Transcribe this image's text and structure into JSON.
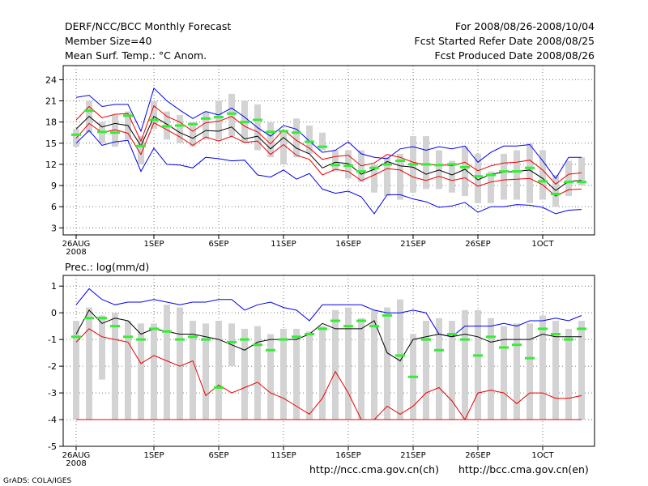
{
  "header": {
    "title": "DERF/NCC/BCC Monthly Forecast",
    "member_size": "Member Size=40",
    "variable": "Mean Surf. Temp.: °C Anom.",
    "period": "For 2008/08/26-2008/10/04",
    "started": "Fcst Started Refer Date 2008/08/25",
    "produced": "Fcst Produced Date 2008/08/26"
  },
  "footer": {
    "url_ch": "http://ncc.cma.gov.cn(ch)",
    "url_en": "http://bcc.cma.gov.cn(en)",
    "grads": "GrADS: COLA/IGES"
  },
  "colors": {
    "max": "#0000ee",
    "min": "#0000ee",
    "spread": "#ee0000",
    "mean": "#000000",
    "obs": "#33ee33",
    "bar": "#d3d3d3"
  },
  "chart_data": [
    {
      "type": "line",
      "title": "Mean Surf. Temp.: °C Anom.",
      "xlabel": "",
      "ylabel": "",
      "ylim": [
        2,
        26
      ],
      "yticks": [
        3,
        6,
        9,
        12,
        15,
        18,
        21,
        24
      ],
      "xticks": [
        "26AUG 2008",
        "1SEP",
        "6SEP",
        "11SEP",
        "16SEP",
        "21SEP",
        "26SEP",
        "1OCT"
      ],
      "days": 40,
      "bar_low": [
        14.5,
        16.5,
        15.0,
        14.5,
        15.5,
        12.0,
        17.0,
        15.5,
        15.0,
        14.5,
        15.5,
        15.5,
        16.0,
        15.0,
        14.0,
        13.0,
        12.0,
        13.0,
        13.5,
        14.0,
        11.0,
        10.0,
        9.5,
        8.0,
        7.5,
        7.0,
        8.0,
        8.5,
        8.5,
        8.0,
        7.5,
        6.5,
        6.5,
        7.0,
        7.0,
        6.5,
        7.0,
        6.0,
        7.5,
        9.0
      ],
      "bar_high": [
        17.0,
        21.0,
        18.0,
        19.0,
        19.5,
        16.0,
        21.0,
        19.5,
        19.0,
        18.0,
        19.5,
        21.0,
        22.0,
        21.0,
        20.5,
        18.0,
        16.5,
        18.5,
        17.5,
        16.5,
        14.0,
        14.0,
        14.0,
        12.0,
        13.0,
        13.5,
        16.0,
        16.0,
        14.0,
        12.5,
        14.5,
        13.5,
        11.0,
        13.5,
        14.0,
        15.0,
        14.0,
        10.5,
        12.5,
        13.0
      ],
      "series": [
        {
          "name": "max",
          "values": [
            21.5,
            21.8,
            20.2,
            20.5,
            20.5,
            16.7,
            22.8,
            21.0,
            19.7,
            18.5,
            19.5,
            19.0,
            20.0,
            18.7,
            17.2,
            16.0,
            17.5,
            17.0,
            15.3,
            13.7,
            14.0,
            15.2,
            13.5,
            13.0,
            12.8,
            14.2,
            14.5,
            14.0,
            14.5,
            14.2,
            14.6,
            12.3,
            13.7,
            14.6,
            14.6,
            14.8,
            12.5,
            10.0,
            13.0,
            13.0
          ]
        },
        {
          "name": "spread_upper",
          "values": [
            18.3,
            20.2,
            18.6,
            19.1,
            19.2,
            15.3,
            20.3,
            18.8,
            18.0,
            16.7,
            17.9,
            18.1,
            18.8,
            17.4,
            16.6,
            14.9,
            16.9,
            15.4,
            14.3,
            12.7,
            13.1,
            13.3,
            11.8,
            12.2,
            13.4,
            13.0,
            12.3,
            11.9,
            12.0,
            11.8,
            12.3,
            11.1,
            11.8,
            12.2,
            12.3,
            12.6,
            11.2,
            9.2,
            10.6,
            10.8
          ]
        },
        {
          "name": "mean",
          "values": [
            17.0,
            18.8,
            17.3,
            17.8,
            17.5,
            14.6,
            18.8,
            17.7,
            16.5,
            15.7,
            16.8,
            16.7,
            17.3,
            15.6,
            16.0,
            14.2,
            15.8,
            14.3,
            13.5,
            11.5,
            12.3,
            12.1,
            10.6,
            11.3,
            12.4,
            11.8,
            11.6,
            10.6,
            11.2,
            10.5,
            11.3,
            9.8,
            10.6,
            10.9,
            11.0,
            11.2,
            10.0,
            8.3,
            9.6,
            9.7
          ]
        },
        {
          "name": "spread_lower",
          "values": [
            15.7,
            17.8,
            16.5,
            16.9,
            16.4,
            13.4,
            17.9,
            16.9,
            15.9,
            14.7,
            15.9,
            15.3,
            16.0,
            15.1,
            15.3,
            13.4,
            14.8,
            13.3,
            12.7,
            10.5,
            11.3,
            11.0,
            9.7,
            10.5,
            11.4,
            11.2,
            10.2,
            9.7,
            10.3,
            9.7,
            10.1,
            8.9,
            9.5,
            9.8,
            9.9,
            10.0,
            9.1,
            7.5,
            8.4,
            8.5
          ]
        },
        {
          "name": "min",
          "values": [
            15.0,
            16.8,
            14.7,
            15.2,
            15.4,
            11.0,
            14.3,
            12.0,
            11.9,
            11.5,
            13.0,
            12.8,
            12.5,
            12.6,
            10.5,
            10.2,
            11.2,
            9.9,
            10.7,
            8.5,
            7.9,
            8.2,
            7.4,
            5.0,
            7.7,
            7.7,
            7.1,
            6.7,
            5.9,
            6.1,
            6.6,
            5.2,
            6.0,
            6.0,
            6.3,
            6.2,
            5.9,
            5.0,
            5.5,
            5.6
          ]
        }
      ],
      "obs": [
        16.2,
        19.6,
        16.6,
        16.5,
        18.9,
        14.6,
        18.3,
        17.4,
        17.5,
        17.7,
        18.5,
        18.7,
        19.2,
        18.0,
        18.3,
        16.6,
        16.7,
        16.5,
        15.2,
        14.5,
        11.9,
        11.8,
        11.0,
        11.5,
        12.0,
        12.5,
        12.0,
        12.0,
        11.9,
        12.0,
        11.6,
        10.3,
        10.5,
        11.0,
        11.0,
        11.5,
        9.6,
        7.8,
        9.5,
        9.5
      ]
    },
    {
      "type": "line",
      "title": "Prec.: log(mm/d)",
      "xlabel": "",
      "ylabel": "",
      "ylim": [
        -5,
        1.4
      ],
      "yticks": [
        -5,
        -4,
        -3,
        -2,
        -1,
        0,
        1
      ],
      "xticks": [
        "26AUG 2008",
        "1SEP",
        "6SEP",
        "11SEP",
        "16SEP",
        "21SEP",
        "26SEP",
        "1OCT"
      ],
      "days": 40,
      "bar_low": [
        -4,
        -4,
        -2.5,
        -4,
        -4,
        -4,
        -4,
        -4,
        -4,
        -4,
        -4,
        -4,
        -2.0,
        -4,
        -4,
        -4,
        -4,
        -4,
        -4,
        -4,
        -4,
        -4,
        -4,
        -4,
        -4,
        -4,
        -4,
        -4,
        -4,
        -4,
        -4,
        -4,
        -4,
        -4,
        -4,
        -4,
        -4,
        -4,
        -4,
        -4
      ],
      "bar_high": [
        -0.3,
        0.2,
        -0.1,
        0.0,
        -0.3,
        -0.4,
        -0.4,
        0.3,
        0.2,
        -0.3,
        -0.4,
        -0.3,
        -0.4,
        -0.6,
        -0.5,
        -0.8,
        -0.6,
        -0.6,
        -0.7,
        -0.5,
        0.1,
        0.2,
        -0.2,
        0.1,
        0.2,
        0.5,
        -0.8,
        -0.3,
        -0.2,
        -0.3,
        0.1,
        0.1,
        -0.2,
        -0.5,
        -0.4,
        -0.4,
        -0.1,
        -0.3,
        -0.6,
        -0.3
      ],
      "series": [
        {
          "name": "max",
          "values": [
            0.3,
            0.9,
            0.5,
            0.3,
            0.4,
            0.4,
            0.5,
            0.4,
            0.3,
            0.4,
            0.4,
            0.5,
            0.5,
            0.1,
            0.3,
            0.4,
            0.2,
            0.1,
            -0.3,
            0.3,
            0.3,
            0.3,
            0.3,
            0.1,
            0.0,
            0.0,
            0.1,
            0.0,
            -0.8,
            -0.9,
            -0.5,
            -0.5,
            -0.5,
            -0.4,
            -0.5,
            -0.3,
            -0.3,
            -0.2,
            -0.3,
            -0.1
          ]
        },
        {
          "name": "mean",
          "values": [
            -0.8,
            0.1,
            -0.4,
            -0.2,
            -0.3,
            -0.8,
            -0.6,
            -0.7,
            -0.8,
            -0.8,
            -0.9,
            -1.0,
            -1.2,
            -1.4,
            -1.1,
            -1.0,
            -1.0,
            -1.0,
            -0.8,
            -0.4,
            -0.6,
            -0.6,
            -0.6,
            -0.3,
            -1.5,
            -1.8,
            -1.0,
            -0.9,
            -0.8,
            -0.9,
            -0.8,
            -0.9,
            -1.1,
            -1.0,
            -1.0,
            -1.0,
            -0.8,
            -0.9,
            -0.9,
            -0.9
          ]
        },
        {
          "name": "min",
          "values": [
            -1.1,
            -0.6,
            -0.9,
            -1.0,
            -1.1,
            -1.9,
            -1.6,
            -1.8,
            -2.0,
            -1.8,
            -3.1,
            -2.7,
            -3.0,
            -2.8,
            -2.6,
            -3.0,
            -3.2,
            -3.5,
            -3.8,
            -3.2,
            -2.2,
            -3.0,
            -4.0,
            -4.0,
            -3.5,
            -3.8,
            -3.5,
            -3.0,
            -2.8,
            -3.3,
            -4.0,
            -3.0,
            -2.9,
            -3.0,
            -3.4,
            -3.0,
            -3.0,
            -3.2,
            -3.2,
            -3.1
          ]
        },
        {
          "name": "floor",
          "values": [
            -4,
            -4,
            -4,
            -4,
            -4,
            -4,
            -4,
            -4,
            -4,
            -4,
            -4,
            -4,
            -4,
            -4,
            -4,
            -4,
            -4,
            -4,
            -4,
            -4,
            -4,
            -4,
            -4,
            -4,
            -4,
            -4,
            -4,
            -4,
            -4,
            -4,
            -4,
            -4,
            -4,
            -4,
            -4,
            -4,
            -4,
            -4,
            -4,
            -4
          ]
        }
      ],
      "obs": [
        -0.9,
        -0.2,
        -0.2,
        -0.5,
        -0.9,
        -1.0,
        -0.6,
        -0.7,
        -1.0,
        -0.9,
        -1.0,
        -2.8,
        -1.1,
        -1.0,
        -1.2,
        -1.4,
        -1.0,
        -0.9,
        -0.8,
        -0.6,
        -0.3,
        -0.5,
        -0.3,
        -0.5,
        -0.1,
        -1.6,
        -2.4,
        -1.0,
        -1.4,
        -0.8,
        -1.0,
        -1.6,
        -0.9,
        -1.3,
        -1.2,
        -1.7,
        -0.6,
        -0.8,
        -1.0,
        -0.6
      ]
    }
  ]
}
